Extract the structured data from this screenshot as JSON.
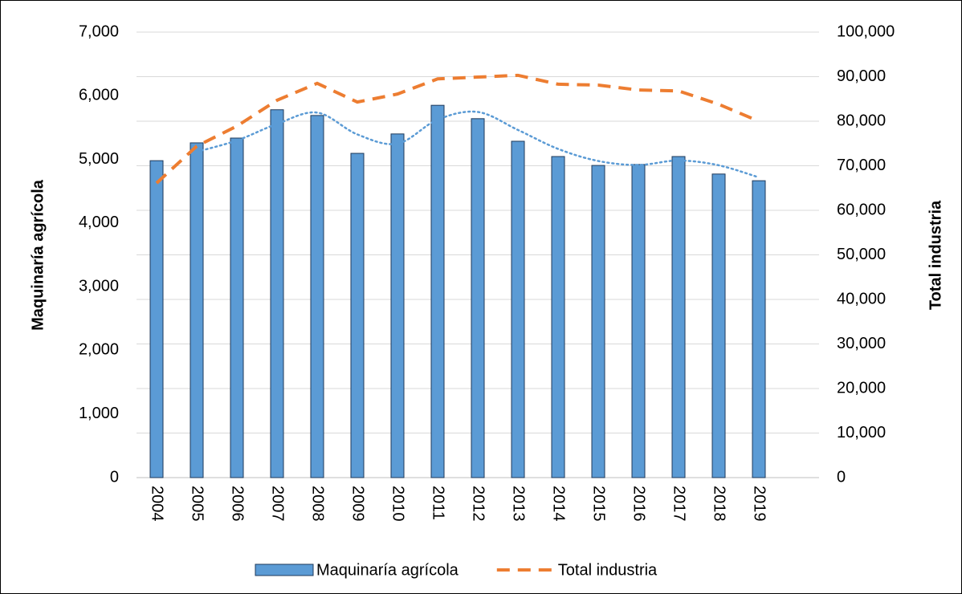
{
  "chart_data": {
    "type": "bar_line",
    "y_label": "Maquinaría agrícola",
    "y2_label": "Total industria",
    "categories": [
      "2004",
      "2005",
      "2006",
      "2007",
      "2008",
      "2009",
      "2010",
      "2011",
      "2012",
      "2013",
      "2014",
      "2015",
      "2016",
      "2017",
      "2018",
      "2019"
    ],
    "series": [
      {
        "name": "Maquinaría agrícola",
        "type": "bar",
        "color": "#5b9bd5",
        "axis": "y",
        "values": [
          4980,
          5260,
          5335,
          5780,
          5690,
          5095,
          5400,
          5850,
          5640,
          5285,
          5045,
          4905,
          4920,
          5045,
          4770,
          4665
        ]
      },
      {
        "name": "Total industria",
        "type": "line",
        "color": "#ed7d31",
        "axis": "y2",
        "values": [
          66100,
          74400,
          78900,
          84700,
          88500,
          84300,
          86100,
          89500,
          89900,
          90300,
          88300,
          88100,
          87000,
          86800,
          83800,
          80000
        ]
      }
    ],
    "trendline_period": 2,
    "trendline_color": "#5b9bd5",
    "ylim": [
      0,
      7000
    ],
    "yticks": [
      0,
      {
        "value": 1000,
        "label": "1,000"
      },
      {
        "value": 2000,
        "label": "2,000"
      },
      {
        "value": 3000,
        "label": "3,000"
      },
      {
        "value": 4000,
        "label": "4,000"
      },
      {
        "value": 5000,
        "label": "5,000"
      },
      {
        "value": 6000,
        "label": "6,000"
      },
      {
        "value": 7000,
        "label": "7,000"
      }
    ],
    "y2lim": [
      0,
      100000
    ],
    "y2ticks": [
      0,
      {
        "value": 10000,
        "label": "10,000"
      },
      {
        "value": 20000,
        "label": "20,000"
      },
      {
        "value": 30000,
        "label": "30,000"
      },
      {
        "value": 40000,
        "label": "40,000"
      },
      {
        "value": 50000,
        "label": "50,000"
      },
      {
        "value": 60000,
        "label": "60,000"
      },
      {
        "value": 70000,
        "label": "70,000"
      },
      {
        "value": 80000,
        "label": "80,000"
      },
      {
        "value": 90000,
        "label": "90,000"
      },
      {
        "value": 100000,
        "label": "100,000"
      }
    ],
    "grid": true
  }
}
